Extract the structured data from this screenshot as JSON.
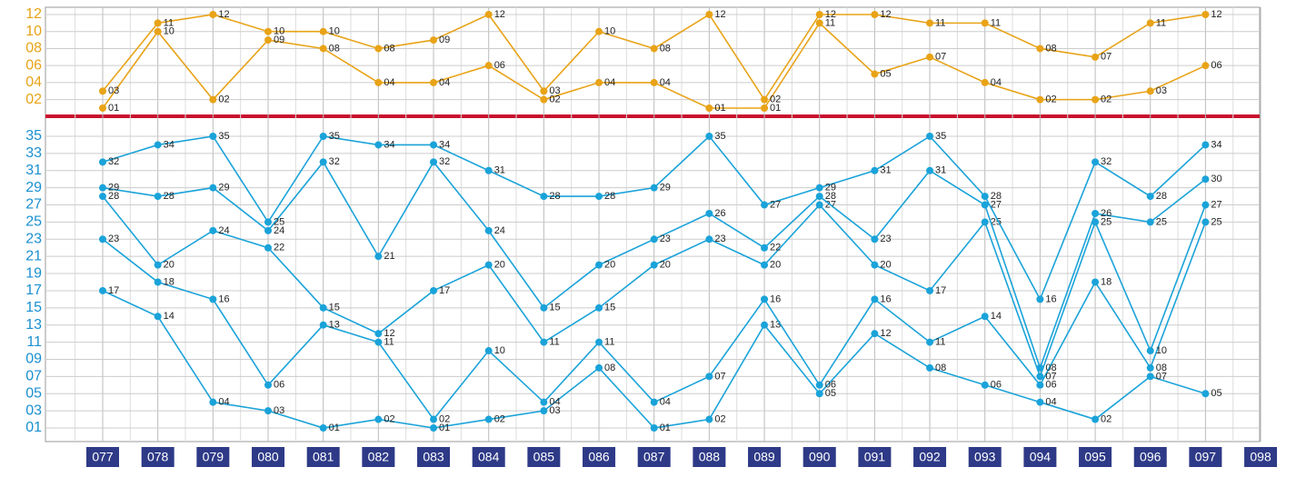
{
  "chart_data": [
    {
      "type": "line",
      "ylim": [
        1,
        12
      ],
      "tick_color": "#e8a317",
      "yticks": [
        {
          "value": 2,
          "label": "02"
        },
        {
          "value": 4,
          "label": "04"
        },
        {
          "value": 6,
          "label": "06"
        },
        {
          "value": 8,
          "label": "08"
        },
        10,
        12
      ],
      "series": [
        {
          "color": "#e8a317",
          "values": [
            1,
            10,
            2,
            9,
            8,
            4,
            4,
            6,
            2,
            4,
            4,
            1,
            1,
            11,
            5,
            7,
            4,
            2,
            2,
            3,
            6,
            null
          ],
          "value_labels": [
            "01",
            "10",
            "02",
            "09",
            "08",
            "04",
            "04",
            "06",
            "02",
            "04",
            "04",
            "01",
            "01",
            "11",
            "05",
            "07",
            "04",
            "02",
            "02",
            "03",
            "06",
            null
          ]
        },
        {
          "color": "#e8a317",
          "values": [
            3,
            11,
            12,
            10,
            10,
            8,
            9,
            12,
            3,
            10,
            8,
            12,
            2,
            12,
            12,
            11,
            11,
            8,
            7,
            11,
            12,
            null
          ],
          "value_labels": [
            "03",
            "11",
            "12",
            "10",
            "10",
            "08",
            "09",
            "12",
            "03",
            "10",
            "08",
            "12",
            "02",
            "12",
            "12",
            "11",
            "11",
            "08",
            "07",
            "11",
            "12",
            null
          ]
        }
      ]
    },
    {
      "type": "line",
      "ylim": [
        1,
        35
      ],
      "tick_color": "#1a8fd0",
      "categories": [
        "077",
        "078",
        "079",
        "080",
        "081",
        "082",
        "083",
        "084",
        "085",
        "086",
        "087",
        "088",
        "089",
        "090",
        "091",
        "092",
        "093",
        "094",
        "095",
        "096",
        "097",
        "098"
      ],
      "yticks": [
        {
          "value": 1,
          "label": "01"
        },
        {
          "value": 3,
          "label": "03"
        },
        {
          "value": 5,
          "label": "05"
        },
        {
          "value": 7,
          "label": "07"
        },
        {
          "value": 9,
          "label": "09"
        },
        11,
        13,
        15,
        17,
        19,
        21,
        23,
        25,
        27,
        29,
        31,
        33,
        35
      ],
      "series": [
        {
          "color": "#1aa3d9",
          "values": [
            17,
            14,
            4,
            3,
            1,
            2,
            1,
            2,
            3,
            8,
            1,
            2,
            13,
            5,
            12,
            8,
            6,
            4,
            2,
            7,
            5,
            null
          ],
          "value_labels": [
            "17",
            "14",
            "04",
            "03",
            "01",
            "02",
            "01",
            "02",
            "03",
            "08",
            "01",
            "02",
            "13",
            "05",
            "12",
            "08",
            "06",
            "04",
            "02",
            "07",
            "05",
            null
          ]
        },
        {
          "color": "#1aa3d9",
          "values": [
            23,
            18,
            16,
            6,
            13,
            11,
            2,
            10,
            4,
            11,
            4,
            7,
            16,
            6,
            16,
            11,
            14,
            6,
            18,
            8,
            25,
            null
          ],
          "value_labels": [
            "23",
            "18",
            "16",
            "06",
            "13",
            "11",
            "02",
            "10",
            "04",
            "11",
            "04",
            "07",
            "16",
            "06",
            "16",
            "11",
            "14",
            "06",
            "18",
            "08",
            "25",
            null
          ]
        },
        {
          "color": "#1aa3d9",
          "values": [
            28,
            20,
            24,
            22,
            15,
            12,
            17,
            20,
            11,
            15,
            20,
            23,
            20,
            27,
            20,
            17,
            25,
            7,
            25,
            10,
            27,
            null
          ],
          "value_labels": [
            "28",
            "20",
            "24",
            "22",
            "15",
            "12",
            "17",
            "20",
            "11",
            "15",
            "20",
            "23",
            "20",
            "27",
            "20",
            "17",
            "25",
            "07",
            "25",
            "10",
            "27",
            null
          ]
        },
        {
          "color": "#1aa3d9",
          "values": [
            29,
            28,
            29,
            24,
            32,
            21,
            32,
            24,
            15,
            20,
            23,
            26,
            22,
            28,
            23,
            31,
            27,
            8,
            26,
            25,
            30,
            null
          ],
          "value_labels": [
            "29",
            "28",
            "29",
            "24",
            "32",
            "21",
            "32",
            "24",
            "15",
            "20",
            "23",
            "26",
            "22",
            "28",
            "23",
            "31",
            "27",
            "08",
            "26",
            "25",
            "30",
            null
          ]
        },
        {
          "color": "#1aa3d9",
          "values": [
            32,
            34,
            35,
            25,
            35,
            34,
            34,
            31,
            28,
            28,
            29,
            35,
            27,
            29,
            31,
            35,
            28,
            16,
            32,
            28,
            34,
            null
          ],
          "value_labels": [
            "32",
            "34",
            "35",
            "25",
            "35",
            "34",
            "34",
            "31",
            "28",
            "28",
            "29",
            "35",
            "27",
            "29",
            "31",
            "35",
            "28",
            "16",
            "32",
            "28",
            "34",
            null
          ]
        }
      ]
    }
  ]
}
